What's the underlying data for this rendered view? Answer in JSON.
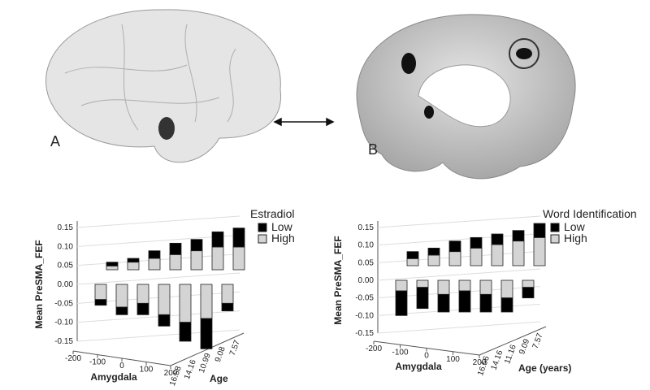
{
  "panels": {
    "a": {
      "label": "A"
    },
    "b": {
      "label": "B"
    }
  },
  "chart_data": [
    {
      "type": "bar",
      "y_label": "Mean PreSMA_FEF",
      "ylim": [
        -0.15,
        0.15
      ],
      "yticks": [
        {
          "value": 0.15,
          "label": "0.15"
        },
        {
          "value": 0.1,
          "label": "0.10"
        },
        {
          "value": 0.05,
          "label": "0.05"
        },
        {
          "value": 0,
          "label": "0.00"
        },
        {
          "value": -0.05,
          "label": "-0.05"
        },
        {
          "value": -0.1,
          "label": "-0.10"
        },
        {
          "value": -0.15,
          "label": "-0.15"
        }
      ],
      "x_label": "Amygdala",
      "xlim": [
        -200,
        200
      ],
      "xticks": [
        -200,
        -100,
        0,
        100,
        200
      ],
      "z_label": "Age",
      "z_categories": [
        "16.58",
        "14.16",
        "10.99",
        "9.08",
        "7.57"
      ],
      "legend_title": "Estradiol",
      "series": [
        {
          "name": "Low",
          "color": "#000000",
          "values": [
            -0.015,
            -0.02,
            -0.03,
            -0.03,
            -0.05,
            -0.08,
            -0.02,
            0.01,
            0.01,
            0.02,
            0.03,
            0.03,
            0.04,
            0.05
          ]
        },
        {
          "name": "High",
          "color": "#d4d4d4",
          "values": [
            -0.04,
            -0.06,
            -0.05,
            -0.08,
            -0.1,
            -0.09,
            -0.05,
            0.01,
            0.02,
            0.03,
            0.04,
            0.05,
            0.06,
            0.06
          ]
        }
      ]
    },
    {
      "type": "bar",
      "y_label": "Mean PreSMA_FEF",
      "ylim": [
        -0.15,
        0.15
      ],
      "yticks": [
        {
          "value": 0.15,
          "label": "0.15"
        },
        {
          "value": 0.1,
          "label": "0.10"
        },
        {
          "value": 0.05,
          "label": "0.05"
        },
        {
          "value": 0,
          "label": "0.00"
        },
        {
          "value": -0.05,
          "label": "-0.05"
        },
        {
          "value": -0.1,
          "label": "-0.10"
        },
        {
          "value": -0.15,
          "label": "-0.15"
        }
      ],
      "x_label": "Amygdala",
      "xlim": [
        -200,
        200
      ],
      "xticks": [
        -200,
        -100,
        0,
        100,
        200
      ],
      "z_label": "Age (years)",
      "z_categories": [
        "16.56",
        "14.16",
        "11.16",
        "9.09",
        "7.57"
      ],
      "legend_title": "Word Identification",
      "series": [
        {
          "name": "Low",
          "color": "#000000",
          "values": [
            -0.07,
            -0.06,
            -0.05,
            -0.06,
            -0.05,
            -0.04,
            -0.03,
            0.02,
            0.02,
            0.03,
            0.03,
            0.03,
            0.03,
            0.04
          ]
        },
        {
          "name": "High",
          "color": "#d4d4d4",
          "values": [
            -0.03,
            -0.02,
            -0.04,
            -0.03,
            -0.04,
            -0.05,
            -0.02,
            0.02,
            0.03,
            0.04,
            0.05,
            0.06,
            0.07,
            0.08
          ]
        }
      ]
    }
  ]
}
